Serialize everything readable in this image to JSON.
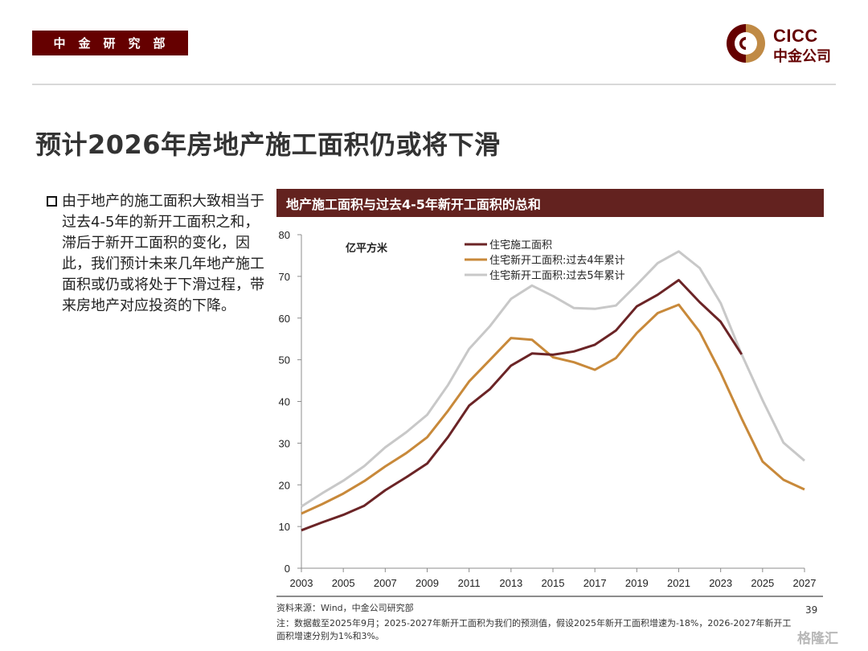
{
  "header": {
    "department": "中金研究部",
    "logo_en": "CICC",
    "logo_cn": "中金公司",
    "brand_color": "#650000",
    "brand_accent": "#c08a45"
  },
  "page_title": "预计2026年房地产施工面积仍或将下滑",
  "bullet": {
    "text": "由于地产的施工面积大致相当于过去4-5年的新开工面积之和，滞后于新开工面积的变化，因此，我们预计未来几年地产施工面积或仍或将处于下滑过程，带来房地产对应投资的下降。"
  },
  "chart_header": "地产施工面积与过去4-5年新开工面积的总和",
  "footer": {
    "source": "资料来源：Wind，中金公司研究部",
    "note": "注：数据截至2025年9月；2025-2027年新开工面积为我们的预测值，假设2025年新开工面积增速为-18%，2026-2027年新开工面积增速分别为1%和3%。",
    "page_number": "39",
    "watermark": "格隆汇"
  },
  "chart_data": {
    "type": "line",
    "title": "地产施工面积与过去4-5年新开工面积的总和",
    "unit_label": "亿平方米",
    "xlabel": "",
    "ylabel": "亿平方米",
    "ylim": [
      0,
      80
    ],
    "yticks": [
      0,
      10,
      20,
      30,
      40,
      50,
      60,
      70,
      80
    ],
    "xlim": [
      2003,
      2027
    ],
    "xticks": [
      "2003",
      "2005",
      "2007",
      "2009",
      "2011",
      "2013",
      "2015",
      "2017",
      "2019",
      "2021",
      "2023",
      "2025",
      "2027"
    ],
    "grid": false,
    "legend_position": "top-center",
    "x": [
      2003,
      2004,
      2005,
      2006,
      2007,
      2008,
      2009,
      2010,
      2011,
      2012,
      2013,
      2014,
      2015,
      2016,
      2017,
      2018,
      2019,
      2020,
      2021,
      2022,
      2023,
      2024,
      2025,
      2026,
      2027
    ],
    "series": [
      {
        "name": "住宅施工面积",
        "color": "#6b2426",
        "values": [
          9.1,
          11.0,
          12.8,
          15.0,
          18.7,
          21.8,
          25.1,
          31.5,
          39.0,
          43.0,
          48.6,
          51.5,
          51.2,
          52.0,
          53.6,
          57.0,
          62.8,
          65.6,
          69.1,
          63.8,
          59.1,
          51.3,
          null,
          null,
          null
        ]
      },
      {
        "name": "住宅新开工面积:过去4年累计",
        "color": "#c8893a",
        "values": [
          13.1,
          15.4,
          17.9,
          20.9,
          24.4,
          27.6,
          31.4,
          37.8,
          44.8,
          50.0,
          55.2,
          54.8,
          50.6,
          49.4,
          47.6,
          50.4,
          56.4,
          61.2,
          63.2,
          56.7,
          46.9,
          35.9,
          25.6,
          21.2,
          18.9
        ]
      },
      {
        "name": "住宅新开工面积:过去5年累计",
        "color": "#c8c8c8",
        "values": [
          14.8,
          18.0,
          21.0,
          24.5,
          29.0,
          32.6,
          36.8,
          44.0,
          52.6,
          58.1,
          64.6,
          67.8,
          65.3,
          62.4,
          62.2,
          63.0,
          68.0,
          73.2,
          76.0,
          72.0,
          63.6,
          51.3,
          40.3,
          30.1,
          25.8
        ]
      }
    ]
  }
}
